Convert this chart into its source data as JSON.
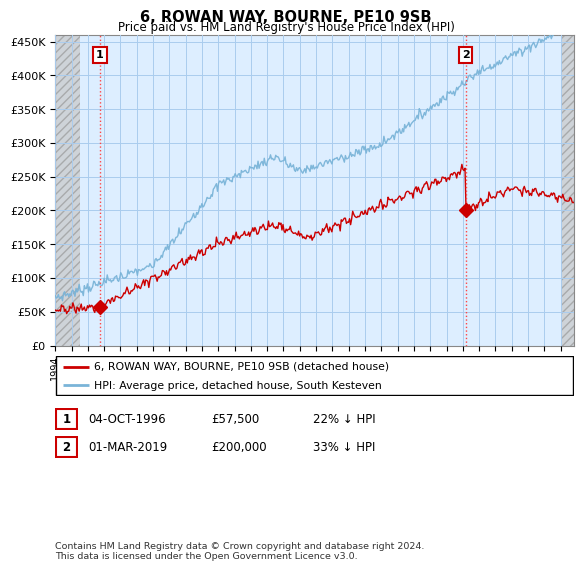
{
  "title": "6, ROWAN WAY, BOURNE, PE10 9SB",
  "subtitle": "Price paid vs. HM Land Registry's House Price Index (HPI)",
  "ylabel_ticks": [
    "£0",
    "£50K",
    "£100K",
    "£150K",
    "£200K",
    "£250K",
    "£300K",
    "£350K",
    "£400K",
    "£450K"
  ],
  "ylim": [
    0,
    460000
  ],
  "xlim_start": 1994.0,
  "xlim_end": 2025.83,
  "hpi_color": "#7ab4d8",
  "price_color": "#cc0000",
  "marker1_x": 1996.75,
  "marker1_y": 57500,
  "marker2_x": 2019.17,
  "marker2_y": 200000,
  "annotation1_label": "1",
  "annotation2_label": "2",
  "legend_line1": "6, ROWAN WAY, BOURNE, PE10 9SB (detached house)",
  "legend_line2": "HPI: Average price, detached house, South Kesteven",
  "table_row1": [
    "1",
    "04-OCT-1996",
    "£57,500",
    "22% ↓ HPI"
  ],
  "table_row2": [
    "2",
    "01-MAR-2019",
    "£200,000",
    "33% ↓ HPI"
  ],
  "footer": "Contains HM Land Registry data © Crown copyright and database right 2024.\nThis data is licensed under the Open Government Licence v3.0.",
  "background_color": "#ffffff",
  "plot_bg_color": "#ddeeff",
  "grid_color": "#aaccee",
  "hatch_area_end": 1995.5
}
